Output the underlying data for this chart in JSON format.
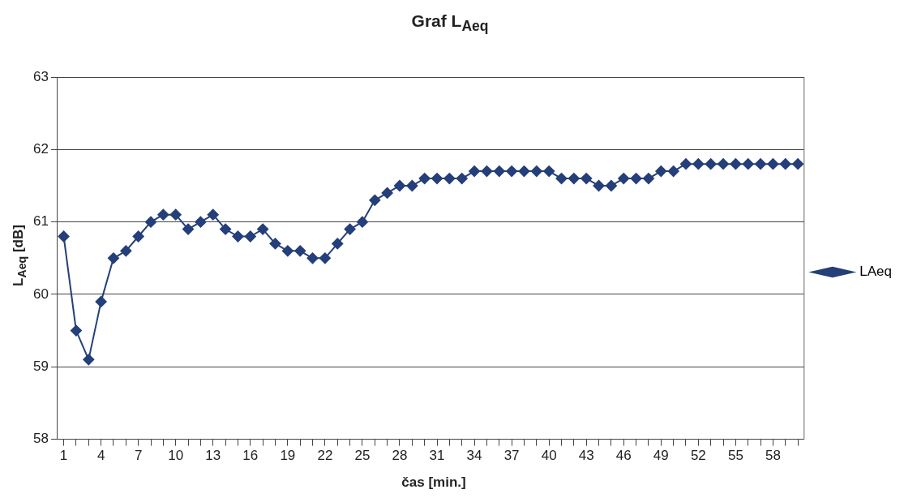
{
  "chart_data": {
    "type": "line",
    "title": "Graf L$_{Aeq}$",
    "xlabel": "čas [min.]",
    "ylabel": "L$_{Aeq}$ [dB]",
    "categories": [
      "1",
      null,
      null,
      "4",
      null,
      null,
      "7",
      null,
      null,
      "10",
      null,
      null,
      "13",
      null,
      null,
      "16",
      null,
      null,
      "19",
      null,
      null,
      "22",
      null,
      null,
      "25",
      null,
      null,
      "28",
      null,
      null,
      "31",
      null,
      null,
      "34",
      null,
      null,
      "37",
      null,
      null,
      "40",
      null,
      null,
      "43",
      null,
      null,
      "46",
      null,
      null,
      "49",
      null,
      null,
      "52",
      null,
      null,
      "55",
      null,
      null,
      "58",
      null,
      null
    ],
    "series": [
      {
        "name": "LAeq",
        "color": "#243f7a",
        "values": [
          60.8,
          59.5,
          59.1,
          59.9,
          60.5,
          60.6,
          60.8,
          61.0,
          61.1,
          61.1,
          60.9,
          61.0,
          61.1,
          60.9,
          60.8,
          60.8,
          60.9,
          60.7,
          60.6,
          60.6,
          60.5,
          60.5,
          60.7,
          60.9,
          61.0,
          61.3,
          61.4,
          61.5,
          61.5,
          61.6,
          61.6,
          61.6,
          61.6,
          61.7,
          61.7,
          61.7,
          61.7,
          61.7,
          61.7,
          61.7,
          61.6,
          61.6,
          61.6,
          61.5,
          61.5,
          61.6,
          61.6,
          61.6,
          61.7,
          61.7,
          61.8,
          61.8,
          61.8,
          61.8,
          61.8,
          61.8,
          61.8,
          61.8,
          61.8,
          61.8
        ]
      }
    ],
    "ylim": [
      58,
      63
    ],
    "yticks": [
      58,
      59,
      60,
      61,
      62,
      63
    ],
    "grid": "y",
    "legend": "right",
    "marker": "diamond",
    "line_style": "solid"
  }
}
